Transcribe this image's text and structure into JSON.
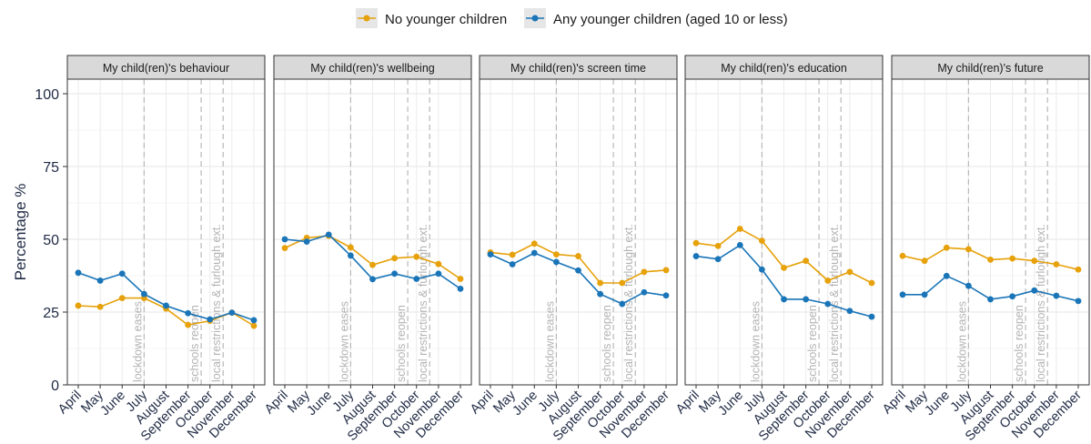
{
  "chart_data": {
    "type": "line",
    "ylabel": "Percentage %",
    "ylim": [
      0,
      105
    ],
    "yticks": [
      0,
      25,
      50,
      75,
      100
    ],
    "grid": true,
    "legend_position": "top",
    "categories": [
      "April",
      "May",
      "June",
      "July",
      "August",
      "September",
      "October",
      "November",
      "December"
    ],
    "legend": [
      {
        "name": "No younger children",
        "color": "#E6A10B"
      },
      {
        "name": "Any younger children (aged 10 or less)",
        "color": "#1A75B8"
      }
    ],
    "events": [
      {
        "label": "lockdown eases",
        "x": 3
      },
      {
        "label": "schools reopen",
        "x": 5.6
      },
      {
        "label": "local restrictions & furlough ext.",
        "x": 6.6
      }
    ],
    "panels": [
      {
        "title": "My child(ren)'s behaviour",
        "series": [
          {
            "name": "No younger children",
            "values": [
              27.2,
              26.8,
              29.8,
              29.8,
              26.2,
              20.6,
              22.0,
              24.8,
              20.3
            ]
          },
          {
            "name": "Any younger children (aged 10 or less)",
            "values": [
              38.5,
              35.8,
              38.2,
              31.2,
              27.2,
              24.6,
              22.5,
              24.8,
              22.2
            ]
          }
        ]
      },
      {
        "title": "My child(ren)'s wellbeing",
        "series": [
          {
            "name": "No younger children",
            "values": [
              47.0,
              50.5,
              51.2,
              47.2,
              41.2,
              43.5,
              44.0,
              41.5,
              36.4
            ]
          },
          {
            "name": "Any younger children (aged 10 or less)",
            "values": [
              50.0,
              49.2,
              51.6,
              44.4,
              36.3,
              38.2,
              36.4,
              38.2,
              33.0
            ]
          }
        ]
      },
      {
        "title": "My child(ren)'s screen time",
        "series": [
          {
            "name": "No younger children",
            "values": [
              45.5,
              44.7,
              48.5,
              44.8,
              44.2,
              35.0,
              35.0,
              38.8,
              39.4
            ]
          },
          {
            "name": "Any younger children (aged 10 or less)",
            "values": [
              44.8,
              41.4,
              45.3,
              42.2,
              39.3,
              31.2,
              27.8,
              31.8,
              30.7
            ]
          }
        ]
      },
      {
        "title": "My child(ren)'s education",
        "series": [
          {
            "name": "No younger children",
            "values": [
              48.7,
              47.7,
              53.6,
              49.5,
              40.2,
              42.6,
              35.8,
              38.8,
              35.0
            ]
          },
          {
            "name": "Any younger children (aged 10 or less)",
            "values": [
              44.2,
              43.2,
              48.0,
              39.6,
              29.4,
              29.4,
              27.8,
              25.4,
              23.4
            ]
          }
        ]
      },
      {
        "title": "My child(ren)'s future",
        "series": [
          {
            "name": "No younger children",
            "values": [
              44.3,
              42.6,
              47.1,
              46.6,
              43.0,
              43.4,
              42.6,
              41.4,
              39.6
            ]
          },
          {
            "name": "Any younger children (aged 10 or less)",
            "values": [
              31.0,
              31.0,
              37.4,
              34.0,
              29.4,
              30.4,
              32.4,
              30.6,
              28.8
            ]
          }
        ]
      }
    ]
  }
}
